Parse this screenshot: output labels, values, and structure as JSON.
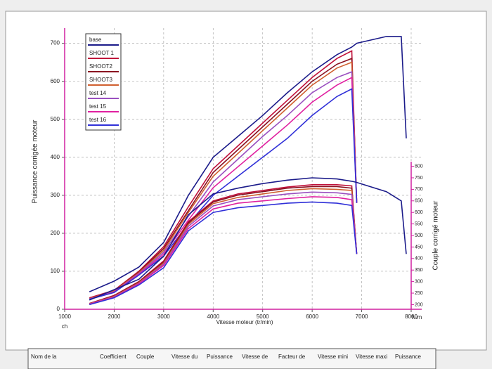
{
  "chart_data": {
    "type": "line",
    "y_label": "Puissance corrigée moteur",
    "y2_label": "Couple corrigé moteur",
    "x_label": "Vitesse moteur (tr/min)",
    "y_unit": "ch",
    "y2_unit": "N.m",
    "x": [
      1500,
      2000,
      2500,
      3000,
      3500,
      4000,
      4500,
      5000,
      5500,
      6000,
      6500,
      6800,
      6900,
      7500,
      7800,
      7900
    ],
    "xlim": [
      1000,
      8000
    ],
    "xticks": [
      1000,
      2000,
      3000,
      4000,
      5000,
      6000,
      7000,
      8000
    ],
    "ylim": [
      0,
      740
    ],
    "yticks": [
      0,
      100,
      200,
      300,
      400,
      500,
      600,
      700
    ],
    "y2lim": [
      180,
      820
    ],
    "y2ticks": [
      200,
      250,
      300,
      350,
      400,
      450,
      500,
      550,
      600,
      650,
      700,
      750,
      800
    ],
    "grid": true,
    "legend": "upper left",
    "series": [
      {
        "name": "base",
        "color": "#1b1b8a",
        "values": [
          46,
          74,
          111,
          176,
          300,
          400,
          455,
          510,
          570,
          625,
          670,
          690,
          700,
          718,
          718,
          450
        ]
      },
      {
        "name": "SHOOT 1",
        "color": "#c0103a",
        "values": [
          30,
          50,
          100,
          165,
          270,
          370,
          430,
          490,
          550,
          610,
          660,
          680,
          280,
          null,
          null,
          null
        ]
      },
      {
        "name": "SHOOT2",
        "color": "#8a1020",
        "values": [
          28,
          48,
          98,
          160,
          260,
          360,
          420,
          480,
          540,
          600,
          645,
          660,
          280,
          null,
          null,
          null
        ]
      },
      {
        "name": "SHOOT3",
        "color": "#d06030",
        "values": [
          28,
          48,
          96,
          155,
          255,
          350,
          410,
          470,
          530,
          590,
          635,
          650,
          280,
          null,
          null,
          null
        ]
      },
      {
        "name": "test 14",
        "color": "#9a50c0",
        "values": [
          27,
          46,
          94,
          150,
          245,
          335,
          395,
          455,
          510,
          570,
          610,
          625,
          280,
          null,
          null,
          null
        ]
      },
      {
        "name": "test 15",
        "color": "#e020a0",
        "values": [
          26,
          45,
          92,
          145,
          235,
          320,
          375,
          430,
          485,
          545,
          590,
          610,
          280,
          null,
          null,
          null
        ]
      },
      {
        "name": "test 16",
        "color": "#3030d8",
        "values": [
          26,
          44,
          90,
          140,
          225,
          300,
          350,
          400,
          450,
          510,
          560,
          580,
          280,
          null,
          null,
          null
        ]
      },
      {
        "color": "#1b1b8a",
        "axis": "y2",
        "values": [
          220,
          265,
          310,
          410,
          590,
          680,
          705,
          725,
          740,
          750,
          745,
          735,
          730,
          690,
          650,
          420
        ]
      },
      {
        "color": "#c0103a",
        "axis": "y2",
        "values": [
          205,
          240,
          300,
          390,
          560,
          650,
          680,
          695,
          710,
          720,
          720,
          715,
          420,
          null,
          null,
          null
        ]
      },
      {
        "color": "#8a1020",
        "axis": "y2",
        "values": [
          205,
          238,
          298,
          385,
          555,
          645,
          675,
          690,
          705,
          712,
          712,
          705,
          420,
          null,
          null,
          null
        ]
      },
      {
        "color": "#d06030",
        "axis": "y2",
        "values": [
          204,
          236,
          295,
          380,
          548,
          638,
          665,
          680,
          695,
          703,
          700,
          695,
          420,
          null,
          null,
          null
        ]
      },
      {
        "color": "#9a50c0",
        "axis": "y2",
        "values": [
          203,
          234,
          292,
          375,
          540,
          628,
          655,
          668,
          680,
          688,
          685,
          678,
          420,
          null,
          null,
          null
        ]
      },
      {
        "color": "#e020a0",
        "axis": "y2",
        "values": [
          202,
          232,
          290,
          370,
          530,
          615,
          640,
          650,
          660,
          668,
          665,
          655,
          420,
          null,
          null,
          null
        ]
      },
      {
        "color": "#3030d8",
        "axis": "y2",
        "values": [
          200,
          230,
          285,
          360,
          520,
          600,
          620,
          630,
          640,
          645,
          640,
          630,
          420,
          null,
          null,
          null
        ]
      }
    ]
  },
  "table": {
    "headers": [
      "Nom de la",
      "Coefficient",
      "Couple",
      "Vitesse du",
      "Puissance",
      "Vitesse de",
      "Facteur de",
      "Vitesse mini",
      "Vitesse maxi",
      "Puissance"
    ]
  }
}
